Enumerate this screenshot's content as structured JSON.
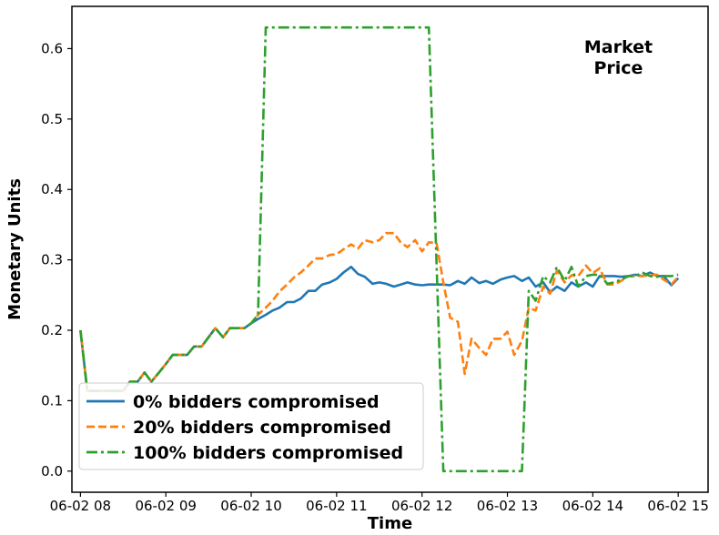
{
  "chart_data": {
    "type": "line",
    "title": "",
    "annotation": [
      "Market",
      "Price"
    ],
    "xlabel": "Time",
    "ylabel": "Monetary Units",
    "xlim": [
      -0.1,
      7.35
    ],
    "ylim": [
      -0.03,
      0.66
    ],
    "x_ticks": [
      {
        "value": 0,
        "label": "06-02 08"
      },
      {
        "value": 1,
        "label": "06-02 09"
      },
      {
        "value": 2,
        "label": "06-02 10"
      },
      {
        "value": 3,
        "label": "06-02 11"
      },
      {
        "value": 4,
        "label": "06-02 12"
      },
      {
        "value": 5,
        "label": "06-02 13"
      },
      {
        "value": 6,
        "label": "06-02 14"
      },
      {
        "value": 7,
        "label": "06-02 15"
      }
    ],
    "y_ticks": [
      {
        "value": 0.0,
        "label": "0.0"
      },
      {
        "value": 0.1,
        "label": "0.1"
      },
      {
        "value": 0.2,
        "label": "0.2"
      },
      {
        "value": 0.3,
        "label": "0.3"
      },
      {
        "value": 0.4,
        "label": "0.4"
      },
      {
        "value": 0.5,
        "label": "0.5"
      },
      {
        "value": 0.6,
        "label": "0.6"
      }
    ],
    "grid": false,
    "legend_position": "lower-left",
    "series": [
      {
        "name": "0% bidders compromised",
        "color": "#1f77b4",
        "style": "solid",
        "points": [
          [
            0.0,
            0.2
          ],
          [
            0.08,
            0.114
          ],
          [
            0.25,
            0.114
          ],
          [
            0.42,
            0.114
          ],
          [
            0.5,
            0.114
          ],
          [
            0.58,
            0.127
          ],
          [
            0.67,
            0.127
          ],
          [
            0.75,
            0.14
          ],
          [
            0.83,
            0.127
          ],
          [
            0.92,
            0.14
          ],
          [
            1.0,
            0.152
          ],
          [
            1.08,
            0.165
          ],
          [
            1.17,
            0.165
          ],
          [
            1.25,
            0.165
          ],
          [
            1.33,
            0.177
          ],
          [
            1.42,
            0.177
          ],
          [
            1.5,
            0.19
          ],
          [
            1.58,
            0.203
          ],
          [
            1.67,
            0.19
          ],
          [
            1.75,
            0.203
          ],
          [
            1.83,
            0.203
          ],
          [
            1.92,
            0.203
          ],
          [
            2.0,
            0.21
          ],
          [
            2.08,
            0.216
          ],
          [
            2.17,
            0.222
          ],
          [
            2.25,
            0.228
          ],
          [
            2.33,
            0.232
          ],
          [
            2.42,
            0.24
          ],
          [
            2.5,
            0.24
          ],
          [
            2.58,
            0.245
          ],
          [
            2.67,
            0.256
          ],
          [
            2.75,
            0.256
          ],
          [
            2.83,
            0.265
          ],
          [
            2.92,
            0.268
          ],
          [
            3.0,
            0.273
          ],
          [
            3.08,
            0.282
          ],
          [
            3.17,
            0.29
          ],
          [
            3.25,
            0.28
          ],
          [
            3.33,
            0.276
          ],
          [
            3.42,
            0.266
          ],
          [
            3.5,
            0.268
          ],
          [
            3.58,
            0.266
          ],
          [
            3.67,
            0.262
          ],
          [
            3.75,
            0.265
          ],
          [
            3.83,
            0.268
          ],
          [
            3.92,
            0.265
          ],
          [
            4.0,
            0.264
          ],
          [
            4.08,
            0.265
          ],
          [
            4.17,
            0.265
          ],
          [
            4.25,
            0.265
          ],
          [
            4.33,
            0.264
          ],
          [
            4.42,
            0.27
          ],
          [
            4.5,
            0.266
          ],
          [
            4.58,
            0.275
          ],
          [
            4.67,
            0.267
          ],
          [
            4.75,
            0.27
          ],
          [
            4.83,
            0.266
          ],
          [
            4.92,
            0.272
          ],
          [
            5.0,
            0.275
          ],
          [
            5.08,
            0.277
          ],
          [
            5.17,
            0.27
          ],
          [
            5.25,
            0.275
          ],
          [
            5.33,
            0.262
          ],
          [
            5.42,
            0.268
          ],
          [
            5.5,
            0.254
          ],
          [
            5.58,
            0.262
          ],
          [
            5.67,
            0.256
          ],
          [
            5.75,
            0.268
          ],
          [
            5.83,
            0.262
          ],
          [
            5.92,
            0.268
          ],
          [
            6.0,
            0.262
          ],
          [
            6.08,
            0.277
          ],
          [
            6.17,
            0.277
          ],
          [
            6.25,
            0.277
          ],
          [
            6.33,
            0.276
          ],
          [
            6.42,
            0.277
          ],
          [
            6.5,
            0.279
          ],
          [
            6.58,
            0.277
          ],
          [
            6.67,
            0.282
          ],
          [
            6.75,
            0.277
          ],
          [
            6.83,
            0.277
          ],
          [
            6.92,
            0.264
          ],
          [
            7.0,
            0.274
          ]
        ]
      },
      {
        "name": "20% bidders compromised",
        "color": "#ff7f0e",
        "style": "dashed",
        "points": [
          [
            0.0,
            0.2
          ],
          [
            0.08,
            0.114
          ],
          [
            0.25,
            0.114
          ],
          [
            0.42,
            0.114
          ],
          [
            0.5,
            0.114
          ],
          [
            0.58,
            0.127
          ],
          [
            0.67,
            0.127
          ],
          [
            0.75,
            0.14
          ],
          [
            0.83,
            0.127
          ],
          [
            0.92,
            0.14
          ],
          [
            1.0,
            0.152
          ],
          [
            1.08,
            0.165
          ],
          [
            1.17,
            0.165
          ],
          [
            1.25,
            0.165
          ],
          [
            1.33,
            0.177
          ],
          [
            1.42,
            0.177
          ],
          [
            1.5,
            0.19
          ],
          [
            1.58,
            0.203
          ],
          [
            1.67,
            0.19
          ],
          [
            1.75,
            0.203
          ],
          [
            1.83,
            0.203
          ],
          [
            1.92,
            0.203
          ],
          [
            2.0,
            0.21
          ],
          [
            2.08,
            0.222
          ],
          [
            2.17,
            0.232
          ],
          [
            2.25,
            0.242
          ],
          [
            2.33,
            0.255
          ],
          [
            2.42,
            0.265
          ],
          [
            2.5,
            0.275
          ],
          [
            2.58,
            0.282
          ],
          [
            2.67,
            0.292
          ],
          [
            2.75,
            0.302
          ],
          [
            2.83,
            0.302
          ],
          [
            2.92,
            0.307
          ],
          [
            3.0,
            0.308
          ],
          [
            3.08,
            0.315
          ],
          [
            3.17,
            0.322
          ],
          [
            3.25,
            0.316
          ],
          [
            3.33,
            0.328
          ],
          [
            3.42,
            0.325
          ],
          [
            3.5,
            0.328
          ],
          [
            3.58,
            0.338
          ],
          [
            3.67,
            0.338
          ],
          [
            3.75,
            0.325
          ],
          [
            3.83,
            0.318
          ],
          [
            3.92,
            0.328
          ],
          [
            4.0,
            0.312
          ],
          [
            4.08,
            0.325
          ],
          [
            4.17,
            0.324
          ],
          [
            4.25,
            0.268
          ],
          [
            4.33,
            0.218
          ],
          [
            4.42,
            0.212
          ],
          [
            4.5,
            0.138
          ],
          [
            4.58,
            0.188
          ],
          [
            4.67,
            0.175
          ],
          [
            4.75,
            0.165
          ],
          [
            4.83,
            0.188
          ],
          [
            4.92,
            0.188
          ],
          [
            5.0,
            0.198
          ],
          [
            5.08,
            0.165
          ],
          [
            5.17,
            0.185
          ],
          [
            5.25,
            0.232
          ],
          [
            5.33,
            0.228
          ],
          [
            5.42,
            0.262
          ],
          [
            5.5,
            0.252
          ],
          [
            5.58,
            0.285
          ],
          [
            5.67,
            0.268
          ],
          [
            5.75,
            0.278
          ],
          [
            5.83,
            0.277
          ],
          [
            5.92,
            0.292
          ],
          [
            6.0,
            0.281
          ],
          [
            6.08,
            0.288
          ],
          [
            6.17,
            0.265
          ],
          [
            6.25,
            0.265
          ],
          [
            6.33,
            0.27
          ],
          [
            6.42,
            0.277
          ],
          [
            6.5,
            0.277
          ],
          [
            6.58,
            0.277
          ],
          [
            6.67,
            0.278
          ],
          [
            6.75,
            0.279
          ],
          [
            6.83,
            0.272
          ],
          [
            6.92,
            0.265
          ],
          [
            7.0,
            0.276
          ]
        ]
      },
      {
        "name": "100% bidders compromised",
        "color": "#2ca02c",
        "style": "dashdot",
        "points": [
          [
            0.0,
            0.2
          ],
          [
            0.08,
            0.114
          ],
          [
            0.25,
            0.114
          ],
          [
            0.42,
            0.114
          ],
          [
            0.5,
            0.114
          ],
          [
            0.58,
            0.127
          ],
          [
            0.67,
            0.127
          ],
          [
            0.75,
            0.14
          ],
          [
            0.83,
            0.127
          ],
          [
            0.92,
            0.14
          ],
          [
            1.0,
            0.152
          ],
          [
            1.08,
            0.165
          ],
          [
            1.17,
            0.165
          ],
          [
            1.25,
            0.165
          ],
          [
            1.33,
            0.177
          ],
          [
            1.42,
            0.177
          ],
          [
            1.5,
            0.19
          ],
          [
            1.58,
            0.203
          ],
          [
            1.67,
            0.19
          ],
          [
            1.75,
            0.203
          ],
          [
            1.83,
            0.203
          ],
          [
            1.92,
            0.203
          ],
          [
            2.0,
            0.21
          ],
          [
            2.08,
            0.222
          ],
          [
            2.17,
            0.63
          ],
          [
            4.08,
            0.63
          ],
          [
            4.25,
            0.0
          ],
          [
            5.08,
            0.0
          ],
          [
            5.17,
            0.0
          ],
          [
            5.25,
            0.256
          ],
          [
            5.33,
            0.242
          ],
          [
            5.42,
            0.277
          ],
          [
            5.5,
            0.268
          ],
          [
            5.58,
            0.29
          ],
          [
            5.67,
            0.27
          ],
          [
            5.75,
            0.29
          ],
          [
            5.83,
            0.262
          ],
          [
            5.92,
            0.277
          ],
          [
            6.0,
            0.279
          ],
          [
            6.08,
            0.279
          ],
          [
            6.17,
            0.266
          ],
          [
            6.25,
            0.268
          ],
          [
            6.33,
            0.272
          ],
          [
            6.42,
            0.277
          ],
          [
            6.5,
            0.277
          ],
          [
            6.58,
            0.282
          ],
          [
            6.67,
            0.277
          ],
          [
            6.75,
            0.276
          ],
          [
            6.83,
            0.277
          ],
          [
            6.92,
            0.277
          ],
          [
            7.0,
            0.279
          ]
        ]
      }
    ]
  }
}
